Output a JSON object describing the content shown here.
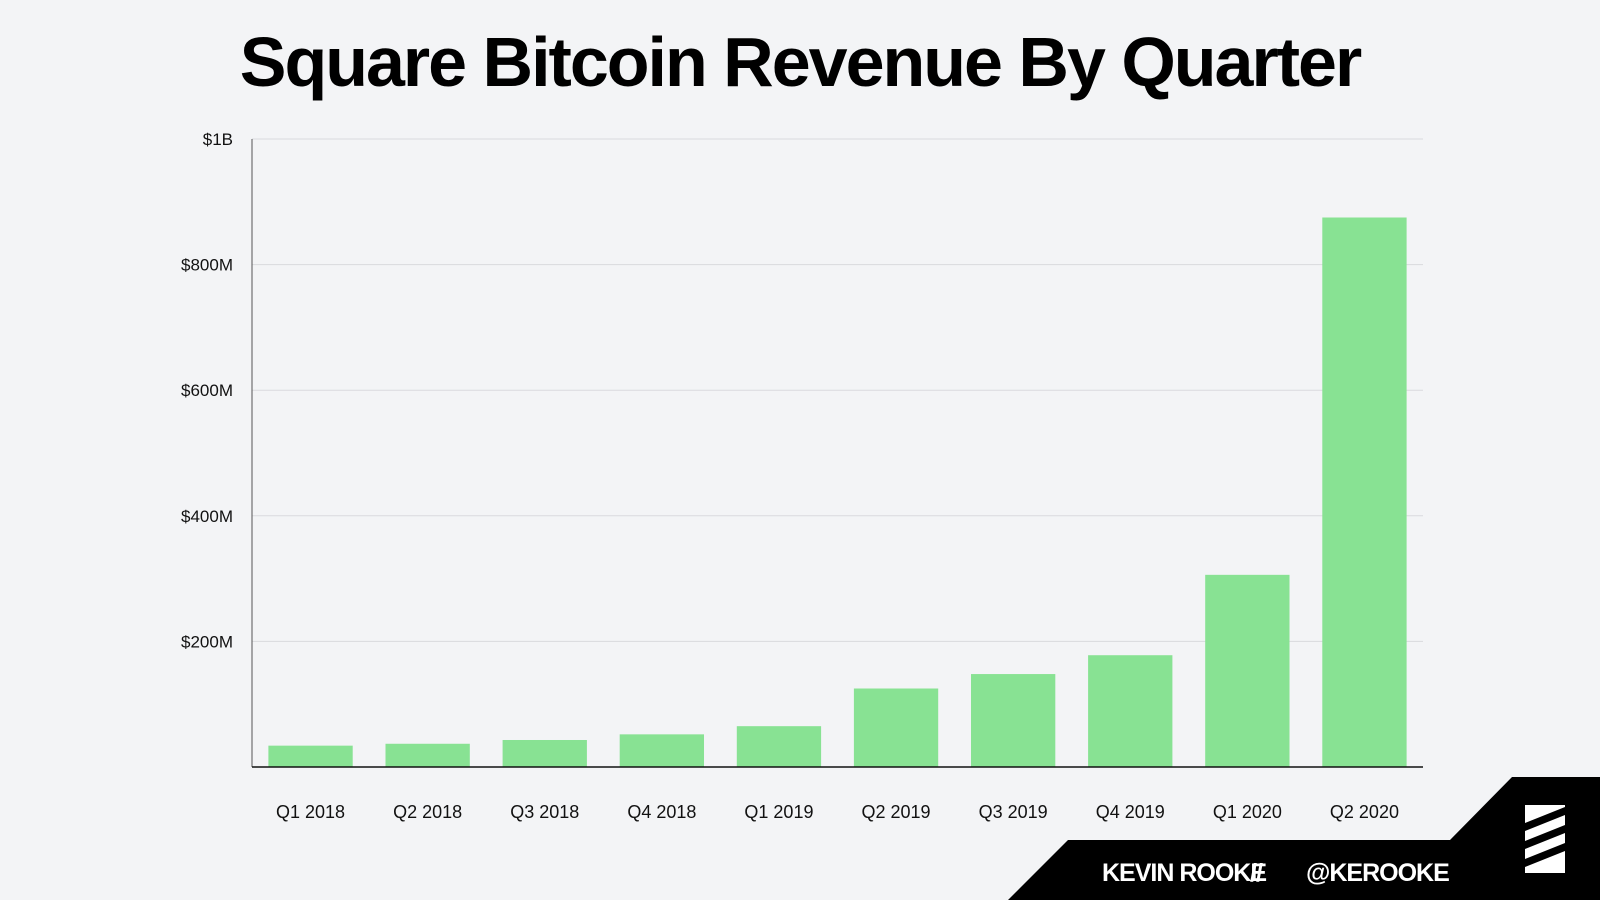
{
  "chart_data": {
    "type": "bar",
    "title": "Square Bitcoin Revenue By Quarter",
    "xlabel": "",
    "ylabel": "",
    "categories": [
      "Q1 2018",
      "Q2 2018",
      "Q3 2018",
      "Q4 2018",
      "Q1 2019",
      "Q2 2019",
      "Q3 2019",
      "Q4 2019",
      "Q1 2020",
      "Q2 2020"
    ],
    "values": [
      34,
      37,
      43,
      52,
      65,
      125,
      148,
      178,
      306,
      875
    ],
    "units": "millions USD",
    "ylim": [
      0,
      1000
    ],
    "yticks": [
      {
        "value": 200,
        "label": "$200M"
      },
      {
        "value": 400,
        "label": "$400M"
      },
      {
        "value": 600,
        "label": "$600M"
      },
      {
        "value": 800,
        "label": "$800M"
      },
      {
        "value": 1000,
        "label": "$1B"
      }
    ],
    "grid": true,
    "bar_color": "#88e293"
  },
  "footer": {
    "author": "KEVIN ROOKE",
    "separator": "//",
    "handle": "@KEROOKE",
    "logo_icon": "striped-square-logo-icon"
  }
}
